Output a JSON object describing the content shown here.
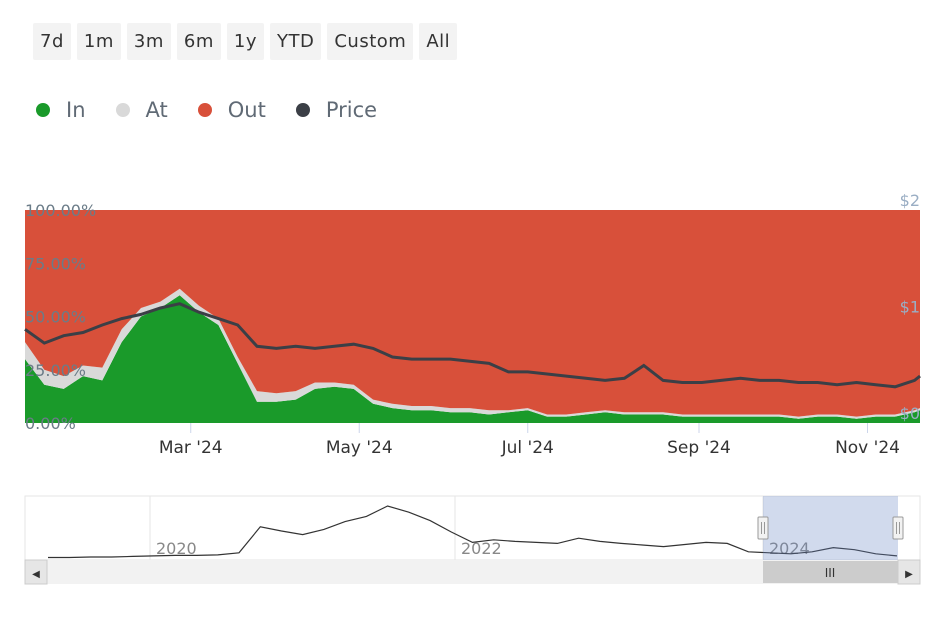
{
  "range_selector": {
    "buttons": [
      "7d",
      "1m",
      "3m",
      "6m",
      "1y",
      "YTD",
      "Custom",
      "All"
    ]
  },
  "legend": [
    {
      "label": "In",
      "color": "#1a9a2a"
    },
    {
      "label": "At",
      "color": "#d9d9d9"
    },
    {
      "label": "Out",
      "color": "#d8503a"
    },
    {
      "label": "Price",
      "color": "#3b3f46"
    }
  ],
  "chart_data": {
    "type": "area",
    "stacking": "percent",
    "x_ticks": [
      "Mar '24",
      "May '24",
      "Jul '24",
      "Sep '24",
      "Nov '24"
    ],
    "y_ticks_left": [
      "0.00%",
      "25.00%",
      "50.00%",
      "75.00%",
      "100.00%"
    ],
    "y_ticks_right": [
      "$2",
      "$1",
      "$0"
    ],
    "y_range_left": [
      0,
      100
    ],
    "y_range_right": [
      0,
      2
    ],
    "x": [
      "2024-01-01",
      "2024-01-08",
      "2024-01-15",
      "2024-01-22",
      "2024-01-29",
      "2024-02-05",
      "2024-02-12",
      "2024-02-19",
      "2024-02-26",
      "2024-03-04",
      "2024-03-11",
      "2024-03-18",
      "2024-03-25",
      "2024-04-01",
      "2024-04-08",
      "2024-04-15",
      "2024-04-22",
      "2024-04-29",
      "2024-05-06",
      "2024-05-13",
      "2024-05-20",
      "2024-05-27",
      "2024-06-03",
      "2024-06-10",
      "2024-06-17",
      "2024-06-24",
      "2024-07-01",
      "2024-07-08",
      "2024-07-15",
      "2024-07-22",
      "2024-07-29",
      "2024-08-05",
      "2024-08-12",
      "2024-08-19",
      "2024-08-26",
      "2024-09-02",
      "2024-09-09",
      "2024-09-16",
      "2024-09-23",
      "2024-09-30",
      "2024-10-07",
      "2024-10-14",
      "2024-10-21",
      "2024-10-28",
      "2024-11-04",
      "2024-11-11",
      "2024-11-18",
      "2024-11-20"
    ],
    "series": [
      {
        "name": "In",
        "values": [
          30,
          18,
          16,
          22,
          20,
          38,
          50,
          54,
          60,
          52,
          46,
          28,
          10,
          10,
          11,
          16,
          17,
          16,
          9,
          7,
          6,
          6,
          5,
          5,
          4,
          5,
          6,
          3,
          3,
          4,
          5,
          4,
          4,
          4,
          3,
          3,
          3,
          3,
          3,
          3,
          2,
          3,
          3,
          2,
          3,
          3,
          5,
          6
        ]
      },
      {
        "name": "At",
        "values": [
          8,
          7,
          6,
          5,
          6,
          6,
          4,
          3,
          3,
          3,
          3,
          3,
          5,
          4,
          4,
          3,
          2,
          2,
          2,
          2,
          2,
          2,
          2,
          2,
          2,
          1,
          1,
          1,
          1,
          1,
          1,
          1,
          1,
          1,
          1,
          1,
          1,
          1,
          1,
          1,
          1,
          1,
          1,
          1,
          1,
          1,
          1,
          1
        ]
      },
      {
        "name": "Out",
        "values": [
          62,
          75,
          78,
          73,
          74,
          56,
          46,
          43,
          37,
          45,
          51,
          69,
          85,
          86,
          85,
          81,
          81,
          82,
          89,
          91,
          92,
          92,
          93,
          93,
          94,
          94,
          93,
          96,
          96,
          95,
          94,
          95,
          95,
          95,
          96,
          96,
          96,
          96,
          96,
          96,
          97,
          96,
          96,
          97,
          96,
          96,
          94,
          93
        ]
      },
      {
        "name": "Price",
        "values": [
          0.88,
          0.75,
          0.82,
          0.85,
          0.92,
          0.98,
          1.02,
          1.08,
          1.12,
          1.04,
          0.98,
          0.92,
          0.72,
          0.7,
          0.72,
          0.7,
          0.72,
          0.74,
          0.7,
          0.62,
          0.6,
          0.6,
          0.6,
          0.58,
          0.56,
          0.48,
          0.48,
          0.46,
          0.44,
          0.42,
          0.4,
          0.42,
          0.54,
          0.4,
          0.38,
          0.38,
          0.4,
          0.42,
          0.4,
          0.4,
          0.38,
          0.38,
          0.36,
          0.38,
          0.36,
          0.34,
          0.4,
          0.44
        ]
      }
    ]
  },
  "navigator": {
    "x_ticks": [
      "2020",
      "2022",
      "2024"
    ],
    "scroll_thumb_label": "III",
    "scroll_left_arrow": "◀",
    "scroll_right_arrow": "▶",
    "price_history": [
      0.01,
      0.01,
      0.02,
      0.02,
      0.03,
      0.04,
      0.05,
      0.05,
      0.06,
      0.1,
      0.6,
      0.52,
      0.45,
      0.55,
      0.7,
      0.8,
      1.0,
      0.88,
      0.72,
      0.5,
      0.3,
      0.35,
      0.32,
      0.3,
      0.28,
      0.38,
      0.32,
      0.28,
      0.25,
      0.22,
      0.26,
      0.3,
      0.28,
      0.12,
      0.1,
      0.08,
      0.12,
      0.2,
      0.16,
      0.08,
      0.04
    ]
  }
}
